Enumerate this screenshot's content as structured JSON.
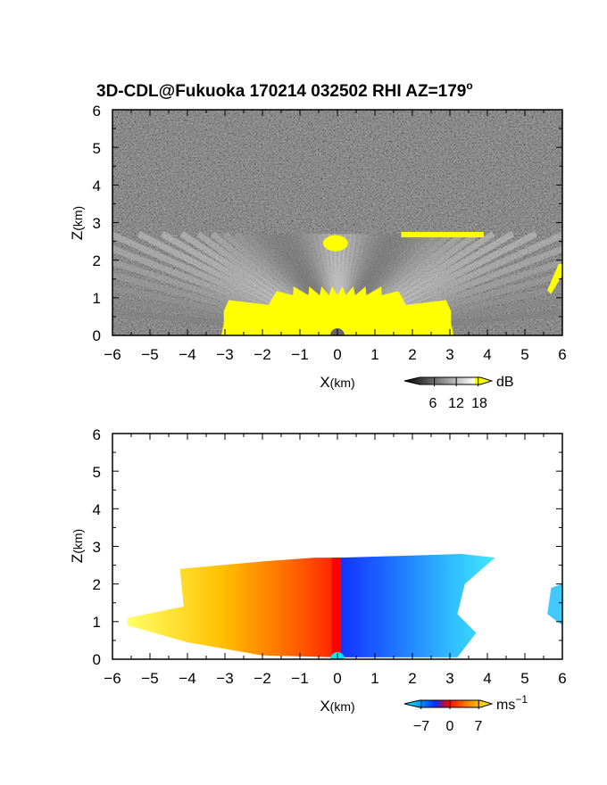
{
  "title_main": "3D-CDL@Fukuoka 170214 032502 RHI AZ=179",
  "title_deg": "o",
  "chart_data": [
    {
      "type": "heatmap",
      "name": "backscatter",
      "xlabel": "X",
      "xlabel_unit": "(km)",
      "ylabel": "Z",
      "ylabel_unit": "(km)",
      "xlim": [
        -6,
        6
      ],
      "ylim": [
        0,
        6
      ],
      "x_ticks": [
        "−6",
        "−5",
        "−4",
        "−3",
        "−2",
        "−1",
        "0",
        "1",
        "2",
        "3",
        "4",
        "5",
        "6"
      ],
      "y_ticks": [
        "0",
        "1",
        "2",
        "3",
        "4",
        "5",
        "6"
      ],
      "colorbar": {
        "unit": "dB",
        "tick_values": [
          6,
          12,
          18
        ],
        "tick_labels": [
          "6",
          "12",
          "18"
        ],
        "range": [
          0,
          21
        ],
        "colors": [
          "#000000",
          "#ffffff",
          "#ffff00"
        ]
      },
      "features": {
        "echo_top_km": 2.7,
        "saturated_core_top_km": 1.3,
        "saturated_layer_km": 2.45,
        "saturated_color": "#ffff00"
      }
    },
    {
      "type": "heatmap",
      "name": "doppler-velocity",
      "xlabel": "X",
      "xlabel_unit": "(km)",
      "ylabel": "Z",
      "ylabel_unit": "(km)",
      "xlim": [
        -6,
        6
      ],
      "ylim": [
        0,
        6
      ],
      "x_ticks": [
        "−6",
        "−5",
        "−4",
        "−3",
        "−2",
        "−1",
        "0",
        "1",
        "2",
        "3",
        "4",
        "5",
        "6"
      ],
      "y_ticks": [
        "0",
        "1",
        "2",
        "3",
        "4",
        "5",
        "6"
      ],
      "colorbar": {
        "unit": "ms",
        "unit_exp": "−1",
        "tick_values": [
          -7,
          0,
          7
        ],
        "tick_labels": [
          "−7",
          "0",
          "7"
        ],
        "range": [
          -10,
          10
        ],
        "colors": [
          "#00ffff",
          "#0000ff",
          "#ff0000",
          "#ffff00"
        ]
      },
      "features": {
        "echo_top_km": 2.8,
        "velocity_sign_change_x_km": 0,
        "negative_side": "x > 0",
        "positive_side": "x < 0"
      }
    }
  ]
}
